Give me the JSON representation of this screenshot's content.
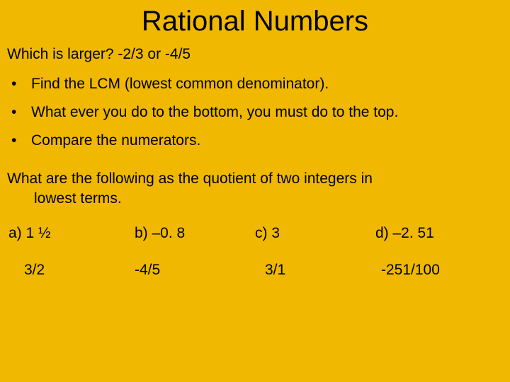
{
  "colors": {
    "background": "#f0b800",
    "text": "#000000"
  },
  "typography": {
    "font_family": "Comic Sans MS",
    "title_fontsize": 40,
    "body_fontsize": 21
  },
  "title": "Rational Numbers",
  "question": "Which is larger?  -2/3   or   -4/5",
  "bullets": [
    "Find the LCM (lowest common denominator).",
    "What ever you do to the bottom, you must do to the top.",
    "Compare the numerators."
  ],
  "prompt_line1": "What are the following as the quotient of two integers in",
  "prompt_line2": "lowest terms.",
  "problems": {
    "a": "a)  1 ½",
    "b": "b) –0. 8",
    "c": "c) 3",
    "d": "d) –2. 51"
  },
  "answers": {
    "a": "3/2",
    "b": "-4/5",
    "c": "3/1",
    "d": "-251/100"
  }
}
